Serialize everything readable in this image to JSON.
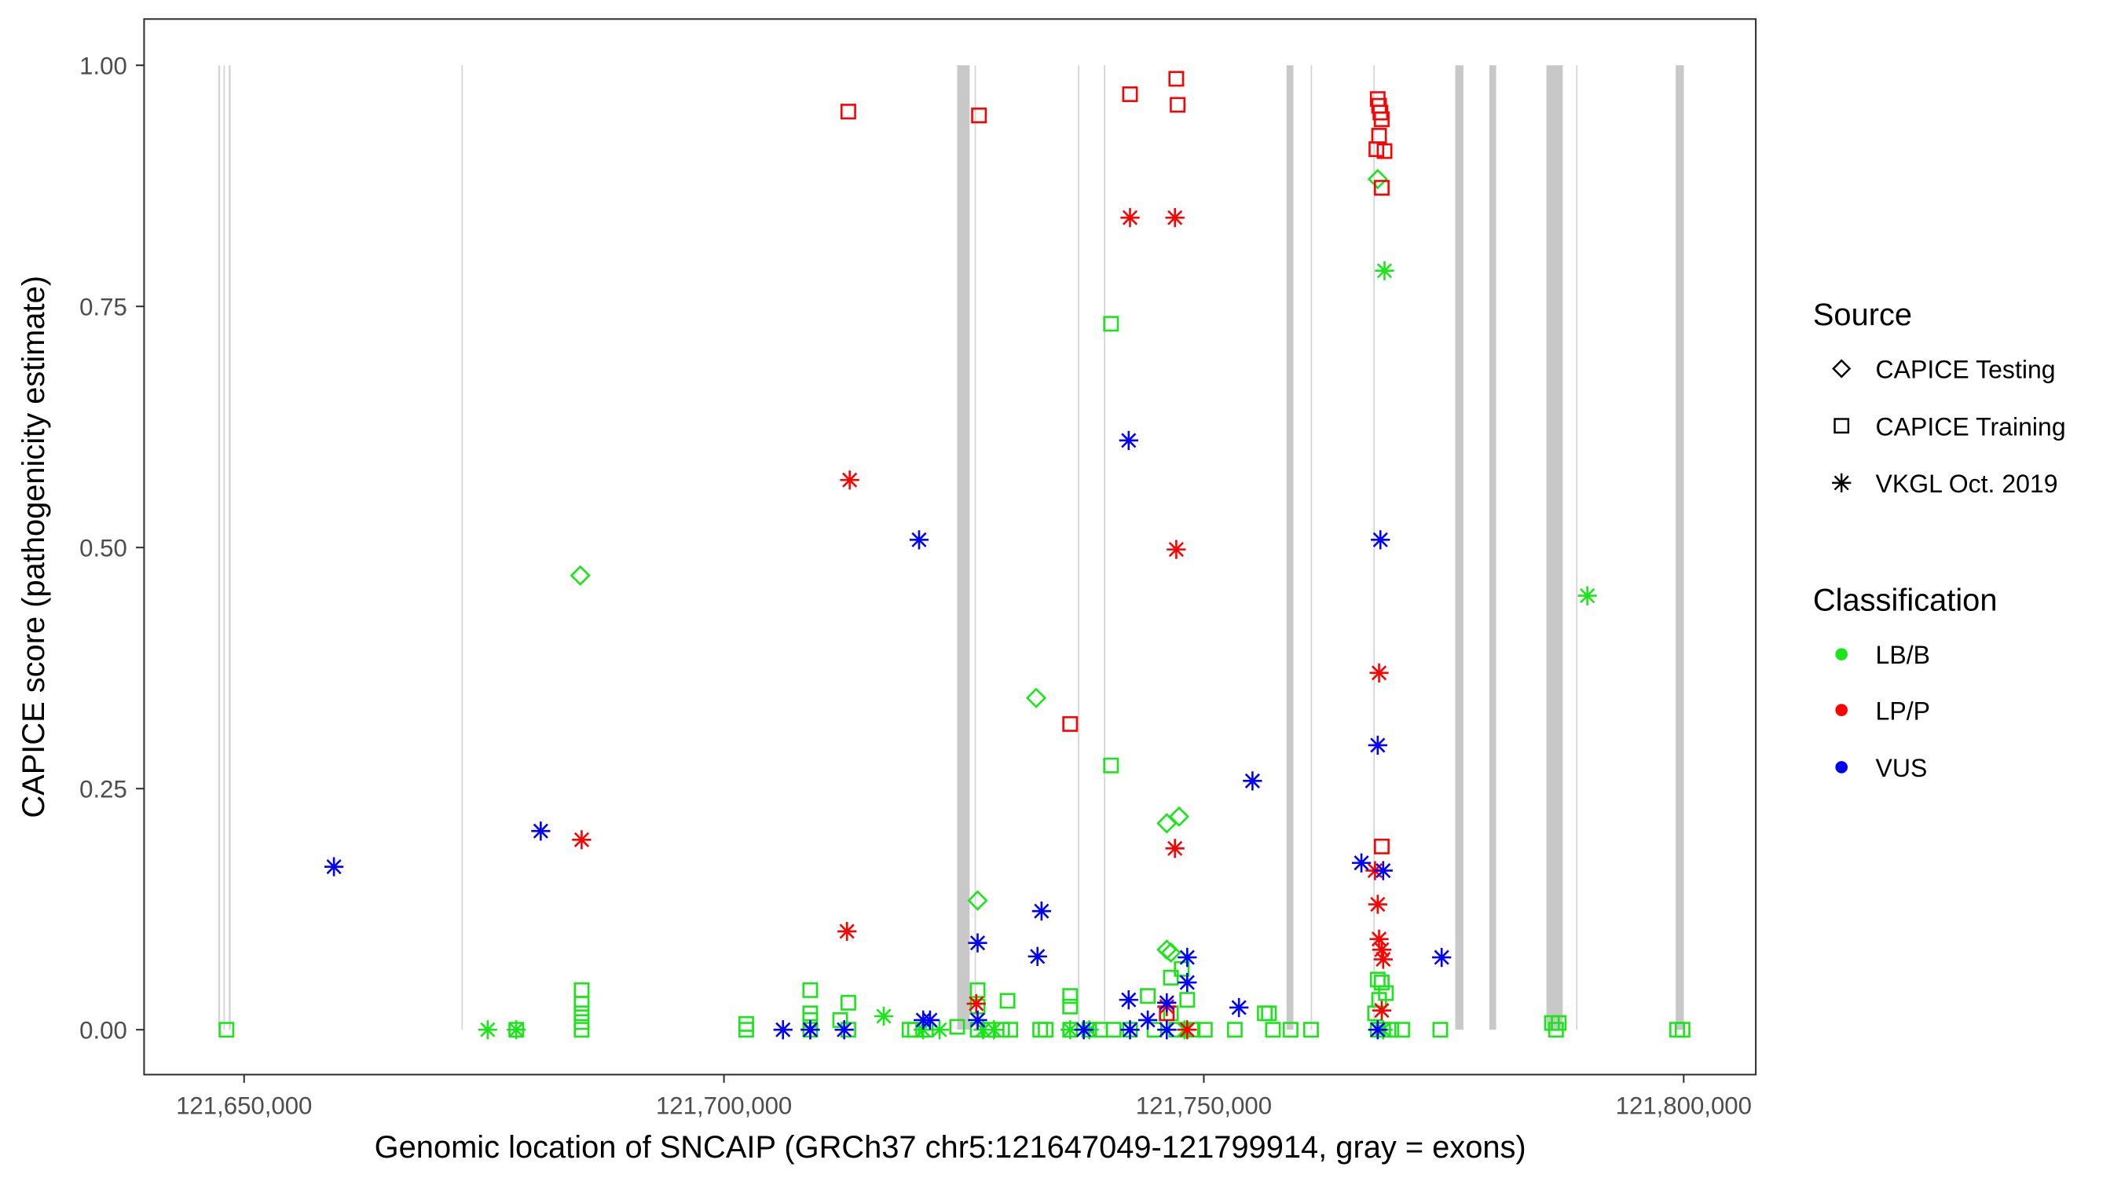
{
  "chart_data": {
    "type": "scatter",
    "xlabel": "Genomic location of SNCAIP (GRCh37 chr5:121647049-121799914, gray = exons)",
    "ylabel": "CAPICE score (pathogenicity estimate)",
    "xlim": [
      121644800,
      121807700
    ],
    "ylim": [
      -0.045,
      1.048
    ],
    "x_ticks": [
      121650000,
      121700000,
      121750000,
      121800000
    ],
    "x_tick_labels": [
      "121,650,000",
      "121,700,000",
      "121,750,000",
      "121,800,000"
    ],
    "y_ticks": [
      0,
      0.25,
      0.5,
      0.75,
      1.0
    ],
    "y_tick_labels": [
      "0.00",
      "0.25",
      "0.50",
      "0.75",
      "1.00"
    ],
    "grid": false,
    "legend_placement": "right",
    "legend": {
      "source_title": "Source",
      "source_items": [
        {
          "label": "CAPICE Testing",
          "shape": "diamond"
        },
        {
          "label": "CAPICE Training",
          "shape": "square"
        },
        {
          "label": "VKGL Oct. 2019",
          "shape": "asterisk"
        }
      ],
      "class_title": "Classification",
      "class_items": [
        {
          "label": "LB/B",
          "color": "#19e619"
        },
        {
          "label": "LP/P",
          "color": "#ff0000"
        },
        {
          "label": "VUS",
          "color": "#0000ff"
        }
      ]
    },
    "exons": [
      [
        121647300,
        121647500
      ],
      [
        121647850,
        121648000
      ],
      [
        121648400,
        121648600
      ],
      [
        121672650,
        121672730
      ],
      [
        121724300,
        121725600
      ],
      [
        121726120,
        121726190
      ],
      [
        121736890,
        121736960
      ],
      [
        121739590,
        121739660
      ],
      [
        121758620,
        121759330
      ],
      [
        121761140,
        121761210
      ],
      [
        121767670,
        121767740
      ],
      [
        121776200,
        121777050
      ],
      [
        121779750,
        121780460
      ],
      [
        121785700,
        121787400
      ],
      [
        121788790,
        121788860
      ],
      [
        121799170,
        121800020
      ]
    ],
    "series": [
      {
        "source": "CAPICE Training",
        "class": "LB/B",
        "points": [
          [
            121648160,
            0
          ],
          [
            121678360,
            0
          ],
          [
            121685170,
            0.041
          ],
          [
            121685170,
            0.027
          ],
          [
            121685170,
            0.017
          ],
          [
            121685170,
            0.008
          ],
          [
            121685170,
            0
          ],
          [
            121702320,
            0.006
          ],
          [
            121702320,
            0
          ],
          [
            121708990,
            0.041
          ],
          [
            121708990,
            0.017
          ],
          [
            121708990,
            0.01
          ],
          [
            121708990,
            0
          ],
          [
            121712110,
            0.01
          ],
          [
            121712960,
            0.028
          ],
          [
            121712960,
            0
          ],
          [
            121719340,
            0
          ],
          [
            121719910,
            0
          ],
          [
            121721040,
            0
          ],
          [
            121724300,
            0.003
          ],
          [
            121726430,
            0.041
          ],
          [
            121726430,
            0.024
          ],
          [
            121726430,
            0
          ],
          [
            121727560,
            0
          ],
          [
            121728980,
            0
          ],
          [
            121729550,
            0.03
          ],
          [
            121729830,
            0
          ],
          [
            121732950,
            0
          ],
          [
            121733520,
            0
          ],
          [
            121736070,
            0.035
          ],
          [
            121736070,
            0.024
          ],
          [
            121736070,
            0
          ],
          [
            121738060,
            0
          ],
          [
            121739190,
            0
          ],
          [
            121740330,
            0.732
          ],
          [
            121740330,
            0.274
          ],
          [
            121740610,
            0
          ],
          [
            121742310,
            0
          ],
          [
            121744160,
            0.035
          ],
          [
            121744860,
            0
          ],
          [
            121746570,
            0.054
          ],
          [
            121746570,
            0.017
          ],
          [
            121747130,
            0
          ],
          [
            121747700,
            0.063
          ],
          [
            121748270,
            0.031
          ],
          [
            121748830,
            0
          ],
          [
            121750110,
            0
          ],
          [
            121753230,
            0
          ],
          [
            121756350,
            0.017
          ],
          [
            121756780,
            0.017
          ],
          [
            121757200,
            0
          ],
          [
            121759040,
            0
          ],
          [
            121761170,
            0
          ],
          [
            121768120,
            0.052
          ],
          [
            121768260,
            0.031
          ],
          [
            121768540,
            0.049
          ],
          [
            121768970,
            0.038
          ],
          [
            121767840,
            0.017
          ],
          [
            121768120,
            0
          ],
          [
            121768690,
            0
          ],
          [
            121769540,
            0
          ],
          [
            121770670,
            0
          ],
          [
            121774640,
            0
          ],
          [
            121786270,
            0.007
          ],
          [
            121786980,
            0.007
          ],
          [
            121786700,
            0
          ],
          [
            121799320,
            0
          ],
          [
            121799880,
            0
          ]
        ]
      },
      {
        "source": "CAPICE Testing",
        "class": "LB/B",
        "points": [
          [
            121685030,
            0.471
          ],
          [
            121726430,
            0.134
          ],
          [
            121732530,
            0.344
          ],
          [
            121746140,
            0.214
          ],
          [
            121747420,
            0.221
          ],
          [
            121746140,
            0.083
          ],
          [
            121746570,
            0.08
          ],
          [
            121768120,
            0.882
          ]
        ]
      },
      {
        "source": "VKGL Oct. 2019",
        "class": "LB/B",
        "points": [
          [
            121675380,
            0
          ],
          [
            121678360,
            0
          ],
          [
            121716650,
            0.014
          ],
          [
            121727000,
            0
          ],
          [
            121728130,
            0
          ],
          [
            121736070,
            0
          ],
          [
            121738060,
            0
          ],
          [
            121720760,
            0
          ],
          [
            121722460,
            0
          ],
          [
            121747980,
            0
          ],
          [
            121768690,
            0
          ],
          [
            121768830,
            0.787
          ],
          [
            121789960,
            0.45
          ]
        ]
      },
      {
        "source": "CAPICE Training",
        "class": "LP/P",
        "points": [
          [
            121712960,
            0.952
          ],
          [
            121726570,
            0.948
          ],
          [
            121742310,
            0.97
          ],
          [
            121747130,
            0.986
          ],
          [
            121747270,
            0.959
          ],
          [
            121736070,
            0.317
          ],
          [
            121768120,
            0.965
          ],
          [
            121768260,
            0.958
          ],
          [
            121768400,
            0.951
          ],
          [
            121768540,
            0.944
          ],
          [
            121768260,
            0.927
          ],
          [
            121767980,
            0.913
          ],
          [
            121768830,
            0.911
          ],
          [
            121768540,
            0.873
          ],
          [
            121768540,
            0.19
          ],
          [
            121746140,
            0.017
          ]
        ]
      },
      {
        "source": "VKGL Oct. 2019",
        "class": "LP/P",
        "points": [
          [
            121742310,
            0.842
          ],
          [
            121746990,
            0.842
          ],
          [
            121713100,
            0.57
          ],
          [
            121747130,
            0.498
          ],
          [
            121768260,
            0.37
          ],
          [
            121685170,
            0.197
          ],
          [
            121746990,
            0.188
          ],
          [
            121712820,
            0.102
          ],
          [
            121726290,
            0.027
          ],
          [
            121768120,
            0.13
          ],
          [
            121768260,
            0.094
          ],
          [
            121768540,
            0.083
          ],
          [
            121768690,
            0.073
          ],
          [
            121768540,
            0.02
          ],
          [
            121708990,
            0
          ],
          [
            121748270,
            0
          ],
          [
            121746140,
            0.024
          ],
          [
            121767840,
            0.165
          ]
        ]
      },
      {
        "source": "VKGL Oct. 2019",
        "class": "VUS",
        "points": [
          [
            121659360,
            0.169
          ],
          [
            121680910,
            0.206
          ],
          [
            121720330,
            0.508
          ],
          [
            121742170,
            0.611
          ],
          [
            121768400,
            0.508
          ],
          [
            121768120,
            0.295
          ],
          [
            121755070,
            0.258
          ],
          [
            121766420,
            0.173
          ],
          [
            121768690,
            0.165
          ],
          [
            121733090,
            0.123
          ],
          [
            121726430,
            0.09
          ],
          [
            121732670,
            0.076
          ],
          [
            121774780,
            0.075
          ],
          [
            121748270,
            0.075
          ],
          [
            121748270,
            0.049
          ],
          [
            121742170,
            0.031
          ],
          [
            121746140,
            0.028
          ],
          [
            121753660,
            0.023
          ],
          [
            121726430,
            0.01
          ],
          [
            121706150,
            0
          ],
          [
            121708990,
            0
          ],
          [
            121712530,
            0
          ],
          [
            121720760,
            0.01
          ],
          [
            121721470,
            0.01
          ],
          [
            121737490,
            0
          ],
          [
            121742310,
            0
          ],
          [
            121744160,
            0.01
          ],
          [
            121746140,
            0
          ],
          [
            121768120,
            0
          ]
        ]
      }
    ]
  }
}
